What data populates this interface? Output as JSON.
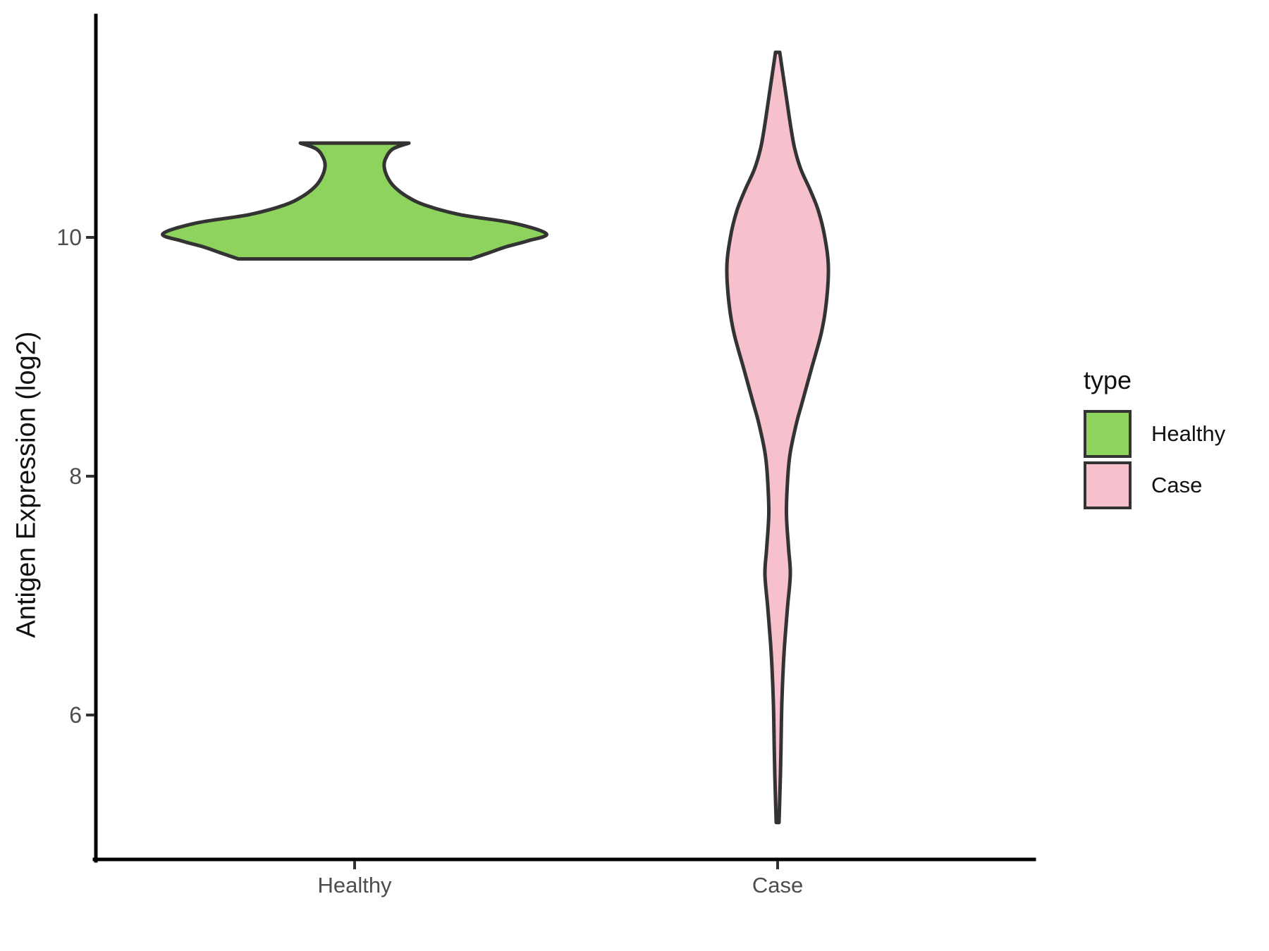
{
  "figure": {
    "background": "#FFFFFF",
    "title": ""
  },
  "chart_data": {
    "type": "violin",
    "title": "",
    "xlabel": "",
    "ylabel": "Antigen Expression (log2)",
    "categories": [
      "Healthy",
      "Case"
    ],
    "ylim": [
      4.75,
      11.9
    ],
    "yticks": [
      6,
      8,
      10
    ],
    "ytick_labels": [
      "6",
      "8",
      "10"
    ],
    "grid": false,
    "panel_style": "classic-no-grid",
    "axis_color": "#000000",
    "tick_color": "#333333",
    "tick_label_color": "#4d4d4d",
    "outline_color": "#333333",
    "legend_title": "type",
    "legend_position": "right",
    "series": [
      {
        "name": "Healthy",
        "fill": "#8DD35E",
        "value_range": [
          9.82,
          10.79
        ],
        "peak_value": 10.0,
        "shape_notes": "flat top at 10.79, narrow neck at 10.59, very wide pointed lobe at 10.0, flat bottom at 9.82",
        "profile": [
          [
            10.79,
            77
          ],
          [
            10.74,
            54
          ],
          [
            10.66,
            44
          ],
          [
            10.59,
            42
          ],
          [
            10.5,
            47
          ],
          [
            10.42,
            57
          ],
          [
            10.34,
            75
          ],
          [
            10.27,
            100
          ],
          [
            10.19,
            150
          ],
          [
            10.12,
            225
          ],
          [
            10.03,
            272
          ],
          [
            9.97,
            245
          ],
          [
            9.92,
            214
          ],
          [
            9.87,
            190
          ],
          [
            9.82,
            165
          ]
        ]
      },
      {
        "name": "Case",
        "fill": "#F6C1CC",
        "value_range": [
          5.1,
          11.55
        ],
        "peak_value": 9.75,
        "shape_notes": "long spindle: tip at 11.55, widest at 9.75, neck at 7.7, small bulge at 7.2, thin tail to 5.1",
        "profile": [
          [
            11.55,
            3
          ],
          [
            11.35,
            8
          ],
          [
            11.15,
            13
          ],
          [
            10.95,
            18
          ],
          [
            10.75,
            24
          ],
          [
            10.57,
            33
          ],
          [
            10.4,
            46
          ],
          [
            10.22,
            58
          ],
          [
            10.0,
            67
          ],
          [
            9.75,
            72
          ],
          [
            9.45,
            69
          ],
          [
            9.2,
            62
          ],
          [
            8.9,
            48
          ],
          [
            8.6,
            34
          ],
          [
            8.45,
            27
          ],
          [
            8.2,
            18
          ],
          [
            8.0,
            14.5
          ],
          [
            7.69,
            12.5
          ],
          [
            7.4,
            15.5
          ],
          [
            7.18,
            18
          ],
          [
            6.9,
            14
          ],
          [
            6.6,
            10
          ],
          [
            6.4,
            8
          ],
          [
            6.1,
            6
          ],
          [
            5.8,
            5
          ],
          [
            5.5,
            4
          ],
          [
            5.1,
            2
          ]
        ]
      }
    ],
    "profile_units": "pairs of [expression value (log2), violin half-width in px at 1800x1350 render]"
  }
}
